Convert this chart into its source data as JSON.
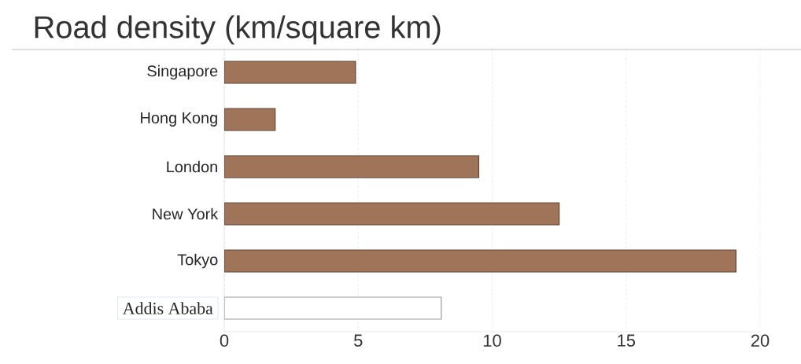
{
  "chart_data": {
    "type": "bar",
    "orientation": "horizontal",
    "title": "Road density (km/square km)",
    "categories": [
      "Singapore",
      "Hong Kong",
      "London",
      "New York",
      "Tokyo",
      "Addis Ababa"
    ],
    "values": [
      4.9,
      1.9,
      9.5,
      12.5,
      19.1,
      8.1
    ],
    "colors": [
      "#a07458",
      "#a07458",
      "#a07458",
      "#a07458",
      "#a07458",
      "#ffffff"
    ],
    "xlim": [
      0,
      20
    ],
    "xticks": [
      0,
      5,
      10,
      15,
      20
    ],
    "grid": "x"
  }
}
